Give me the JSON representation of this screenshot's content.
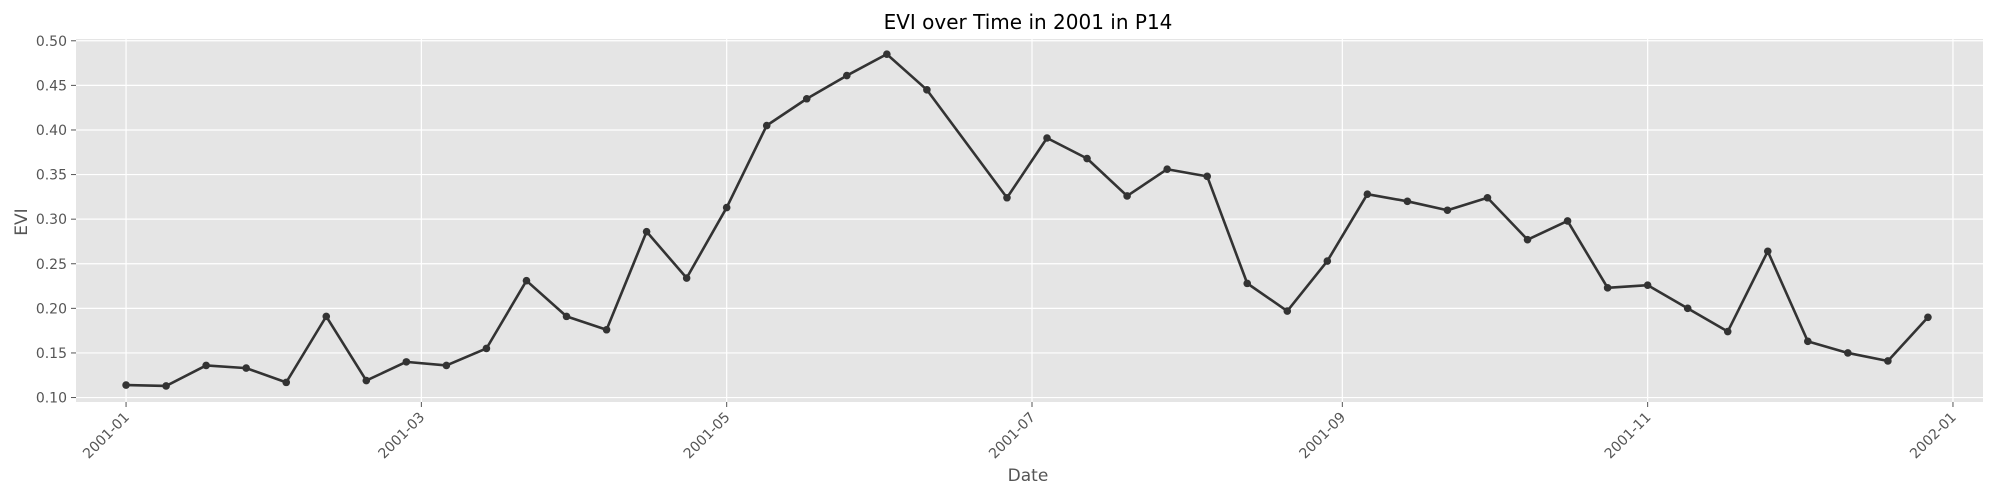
{
  "chart_data": {
    "type": "line",
    "title": "EVI over Time in 2001 in P14",
    "xlabel": "Date",
    "ylabel": "EVI",
    "x_tick_labels": [
      "2001-01",
      "2001-03",
      "2001-05",
      "2001-07",
      "2001-09",
      "2001-11",
      "2002-01"
    ],
    "x_tick_dates": [
      "2001-01-01",
      "2001-03-01",
      "2001-05-01",
      "2001-07-01",
      "2001-09-01",
      "2001-11-01",
      "2002-01-01"
    ],
    "y_tick_labels": [
      "0.10",
      "0.15",
      "0.20",
      "0.25",
      "0.30",
      "0.35",
      "0.40",
      "0.45",
      "0.50"
    ],
    "ylim": [
      0.095,
      0.502
    ],
    "xlim": [
      "2000-12-22",
      "2002-01-07"
    ],
    "grid": true,
    "colors": {
      "background": "#E5E5E5",
      "grid": "#FFFFFF",
      "line": "#333333",
      "text": "#555555"
    },
    "series": [
      {
        "x": [
          "2001-01-01",
          "2001-01-09",
          "2001-01-17",
          "2001-01-25",
          "2001-02-02",
          "2001-02-10",
          "2001-02-18",
          "2001-02-26",
          "2001-03-06",
          "2001-03-14",
          "2001-03-22",
          "2001-03-30",
          "2001-04-07",
          "2001-04-15",
          "2001-04-23",
          "2001-05-01",
          "2001-05-09",
          "2001-05-17",
          "2001-05-25",
          "2001-06-02",
          "2001-06-10",
          "2001-06-26",
          "2001-07-04",
          "2001-07-12",
          "2001-07-20",
          "2001-07-28",
          "2001-08-05",
          "2001-08-13",
          "2001-08-21",
          "2001-08-29",
          "2001-09-06",
          "2001-09-14",
          "2001-09-22",
          "2001-09-30",
          "2001-10-08",
          "2001-10-16",
          "2001-10-24",
          "2001-11-01",
          "2001-11-09",
          "2001-11-17",
          "2001-11-25",
          "2001-12-03",
          "2001-12-11",
          "2001-12-19",
          "2001-12-27"
        ],
        "y": [
          0.114,
          0.113,
          0.136,
          0.133,
          0.117,
          0.191,
          0.119,
          0.14,
          0.136,
          0.155,
          0.231,
          0.191,
          0.176,
          0.286,
          0.234,
          0.313,
          0.405,
          0.435,
          0.461,
          0.485,
          0.445,
          0.324,
          0.391,
          0.368,
          0.326,
          0.356,
          0.348,
          0.228,
          0.197,
          0.253,
          0.328,
          0.32,
          0.31,
          0.324,
          0.277,
          0.298,
          0.223,
          0.226,
          0.2,
          0.174,
          0.264,
          0.163,
          0.15,
          0.141,
          0.19
        ]
      }
    ]
  }
}
